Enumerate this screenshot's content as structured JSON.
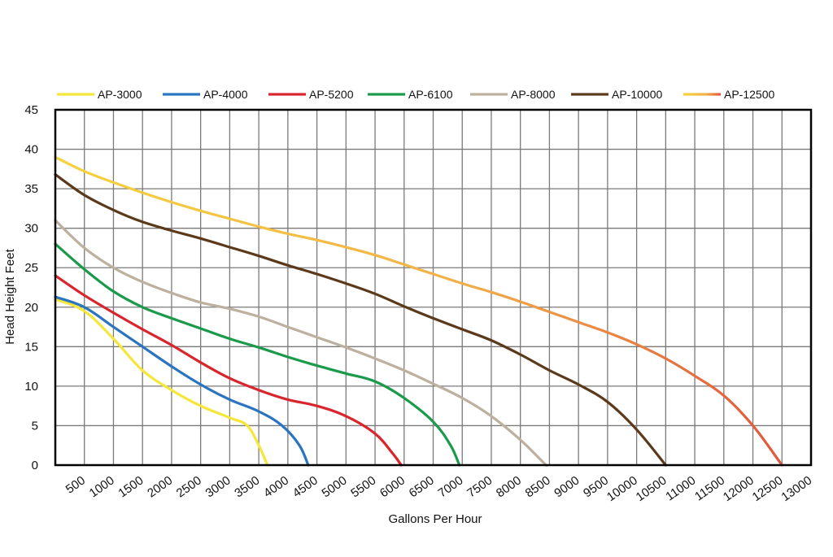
{
  "chart_data": {
    "type": "line",
    "title": "",
    "xlabel": "Gallons Per Hour",
    "ylabel": "Head Height Feet",
    "xlim": [
      0,
      13000
    ],
    "ylim": [
      0,
      45
    ],
    "x_ticks": [
      500,
      1000,
      1500,
      2000,
      2500,
      3000,
      3500,
      4000,
      4500,
      5000,
      5500,
      6000,
      6500,
      7000,
      7500,
      8000,
      8500,
      9000,
      9500,
      10000,
      10500,
      11000,
      11500,
      12000,
      12500,
      13000
    ],
    "x_tick_labels": [
      "500",
      "1000",
      "1500",
      "2000",
      "2500",
      "3000",
      "3500",
      "4000",
      "4500",
      "5000",
      "5500",
      "6000",
      "6500",
      "7000",
      "7500",
      "8000",
      "8500",
      "9000",
      "9500",
      "10000",
      "10500",
      "11000",
      "11500",
      "12000",
      "12500",
      "13000"
    ],
    "y_ticks": [
      0,
      5,
      10,
      15,
      20,
      25,
      30,
      35,
      40,
      45
    ],
    "y_tick_labels": [
      "0",
      "5",
      "10",
      "15",
      "20",
      "25",
      "30",
      "35",
      "40",
      "45"
    ],
    "grid": true,
    "legend_position": "top",
    "series": [
      {
        "name": "AP-3000",
        "color": "#f5e63a",
        "points": [
          [
            0,
            21
          ],
          [
            500,
            19.5
          ],
          [
            1000,
            16
          ],
          [
            1500,
            12
          ],
          [
            2000,
            9.5
          ],
          [
            2500,
            7.5
          ],
          [
            3000,
            6
          ],
          [
            3300,
            5
          ],
          [
            3500,
            2.5
          ],
          [
            3650,
            0
          ]
        ]
      },
      {
        "name": "AP-4000",
        "color": "#2a74c0",
        "points": [
          [
            0,
            21.3
          ],
          [
            500,
            20
          ],
          [
            1000,
            17.5
          ],
          [
            1500,
            15
          ],
          [
            2000,
            12.5
          ],
          [
            2500,
            10.2
          ],
          [
            3000,
            8.3
          ],
          [
            3500,
            6.8
          ],
          [
            3900,
            5
          ],
          [
            4200,
            2.5
          ],
          [
            4350,
            0
          ]
        ]
      },
      {
        "name": "AP-5200",
        "color": "#d9262e",
        "points": [
          [
            0,
            24
          ],
          [
            500,
            21.5
          ],
          [
            1000,
            19.3
          ],
          [
            1500,
            17.2
          ],
          [
            2000,
            15.2
          ],
          [
            2500,
            13
          ],
          [
            3000,
            11
          ],
          [
            3500,
            9.5
          ],
          [
            4000,
            8.3
          ],
          [
            4500,
            7.5
          ],
          [
            5000,
            6.2
          ],
          [
            5500,
            4
          ],
          [
            5800,
            1.5
          ],
          [
            5950,
            0
          ]
        ]
      },
      {
        "name": "AP-6100",
        "color": "#1a9a4a",
        "points": [
          [
            0,
            28
          ],
          [
            500,
            24.8
          ],
          [
            1000,
            22
          ],
          [
            1500,
            20
          ],
          [
            2000,
            18.6
          ],
          [
            2500,
            17.3
          ],
          [
            3000,
            16
          ],
          [
            3500,
            14.9
          ],
          [
            4000,
            13.7
          ],
          [
            4500,
            12.6
          ],
          [
            5000,
            11.6
          ],
          [
            5500,
            10.6
          ],
          [
            6000,
            8.5
          ],
          [
            6500,
            5.5
          ],
          [
            6800,
            2.5
          ],
          [
            6950,
            0
          ]
        ]
      },
      {
        "name": "AP-8000",
        "color": "#bdb09e",
        "points": [
          [
            0,
            31
          ],
          [
            500,
            27.5
          ],
          [
            1000,
            25
          ],
          [
            1500,
            23.2
          ],
          [
            2000,
            21.8
          ],
          [
            2500,
            20.6
          ],
          [
            3000,
            19.8
          ],
          [
            3500,
            18.8
          ],
          [
            4000,
            17.5
          ],
          [
            4500,
            16.2
          ],
          [
            5000,
            14.9
          ],
          [
            5500,
            13.5
          ],
          [
            6000,
            12
          ],
          [
            6500,
            10.3
          ],
          [
            7000,
            8.5
          ],
          [
            7500,
            6.2
          ],
          [
            8000,
            3.2
          ],
          [
            8400,
            0.3
          ],
          [
            8450,
            0
          ]
        ]
      },
      {
        "name": "AP-10000",
        "color": "#5a3a1a",
        "points": [
          [
            0,
            36.8
          ],
          [
            500,
            34.2
          ],
          [
            1000,
            32.3
          ],
          [
            1500,
            30.8
          ],
          [
            2000,
            29.7
          ],
          [
            2500,
            28.7
          ],
          [
            3000,
            27.6
          ],
          [
            3500,
            26.5
          ],
          [
            4000,
            25.3
          ],
          [
            4500,
            24.2
          ],
          [
            5000,
            23
          ],
          [
            5500,
            21.7
          ],
          [
            6000,
            20.1
          ],
          [
            6500,
            18.6
          ],
          [
            7000,
            17.2
          ],
          [
            7500,
            15.8
          ],
          [
            8000,
            14
          ],
          [
            8500,
            12
          ],
          [
            9000,
            10.2
          ],
          [
            9500,
            8
          ],
          [
            10000,
            4.5
          ],
          [
            10500,
            0
          ]
        ]
      },
      {
        "name": "AP-12500",
        "color": "#f6c33a",
        "points": [
          [
            0,
            39
          ],
          [
            500,
            37.2
          ],
          [
            1000,
            35.8
          ],
          [
            1500,
            34.5
          ],
          [
            2000,
            33.3
          ],
          [
            2500,
            32.2
          ],
          [
            3000,
            31.2
          ],
          [
            3500,
            30.2
          ],
          [
            4000,
            29.3
          ],
          [
            4500,
            28.5
          ],
          [
            5000,
            27.6
          ],
          [
            5500,
            26.6
          ],
          [
            6000,
            25.4
          ],
          [
            6500,
            24.2
          ],
          [
            7000,
            23
          ],
          [
            7500,
            21.9
          ],
          [
            8000,
            20.7
          ],
          [
            8500,
            19.4
          ],
          [
            9000,
            18.1
          ],
          [
            9500,
            16.8
          ],
          [
            10000,
            15.3
          ],
          [
            10500,
            13.5
          ],
          [
            11000,
            11.3
          ],
          [
            11500,
            8.8
          ],
          [
            12000,
            5
          ],
          [
            12500,
            0
          ]
        ]
      }
    ]
  }
}
